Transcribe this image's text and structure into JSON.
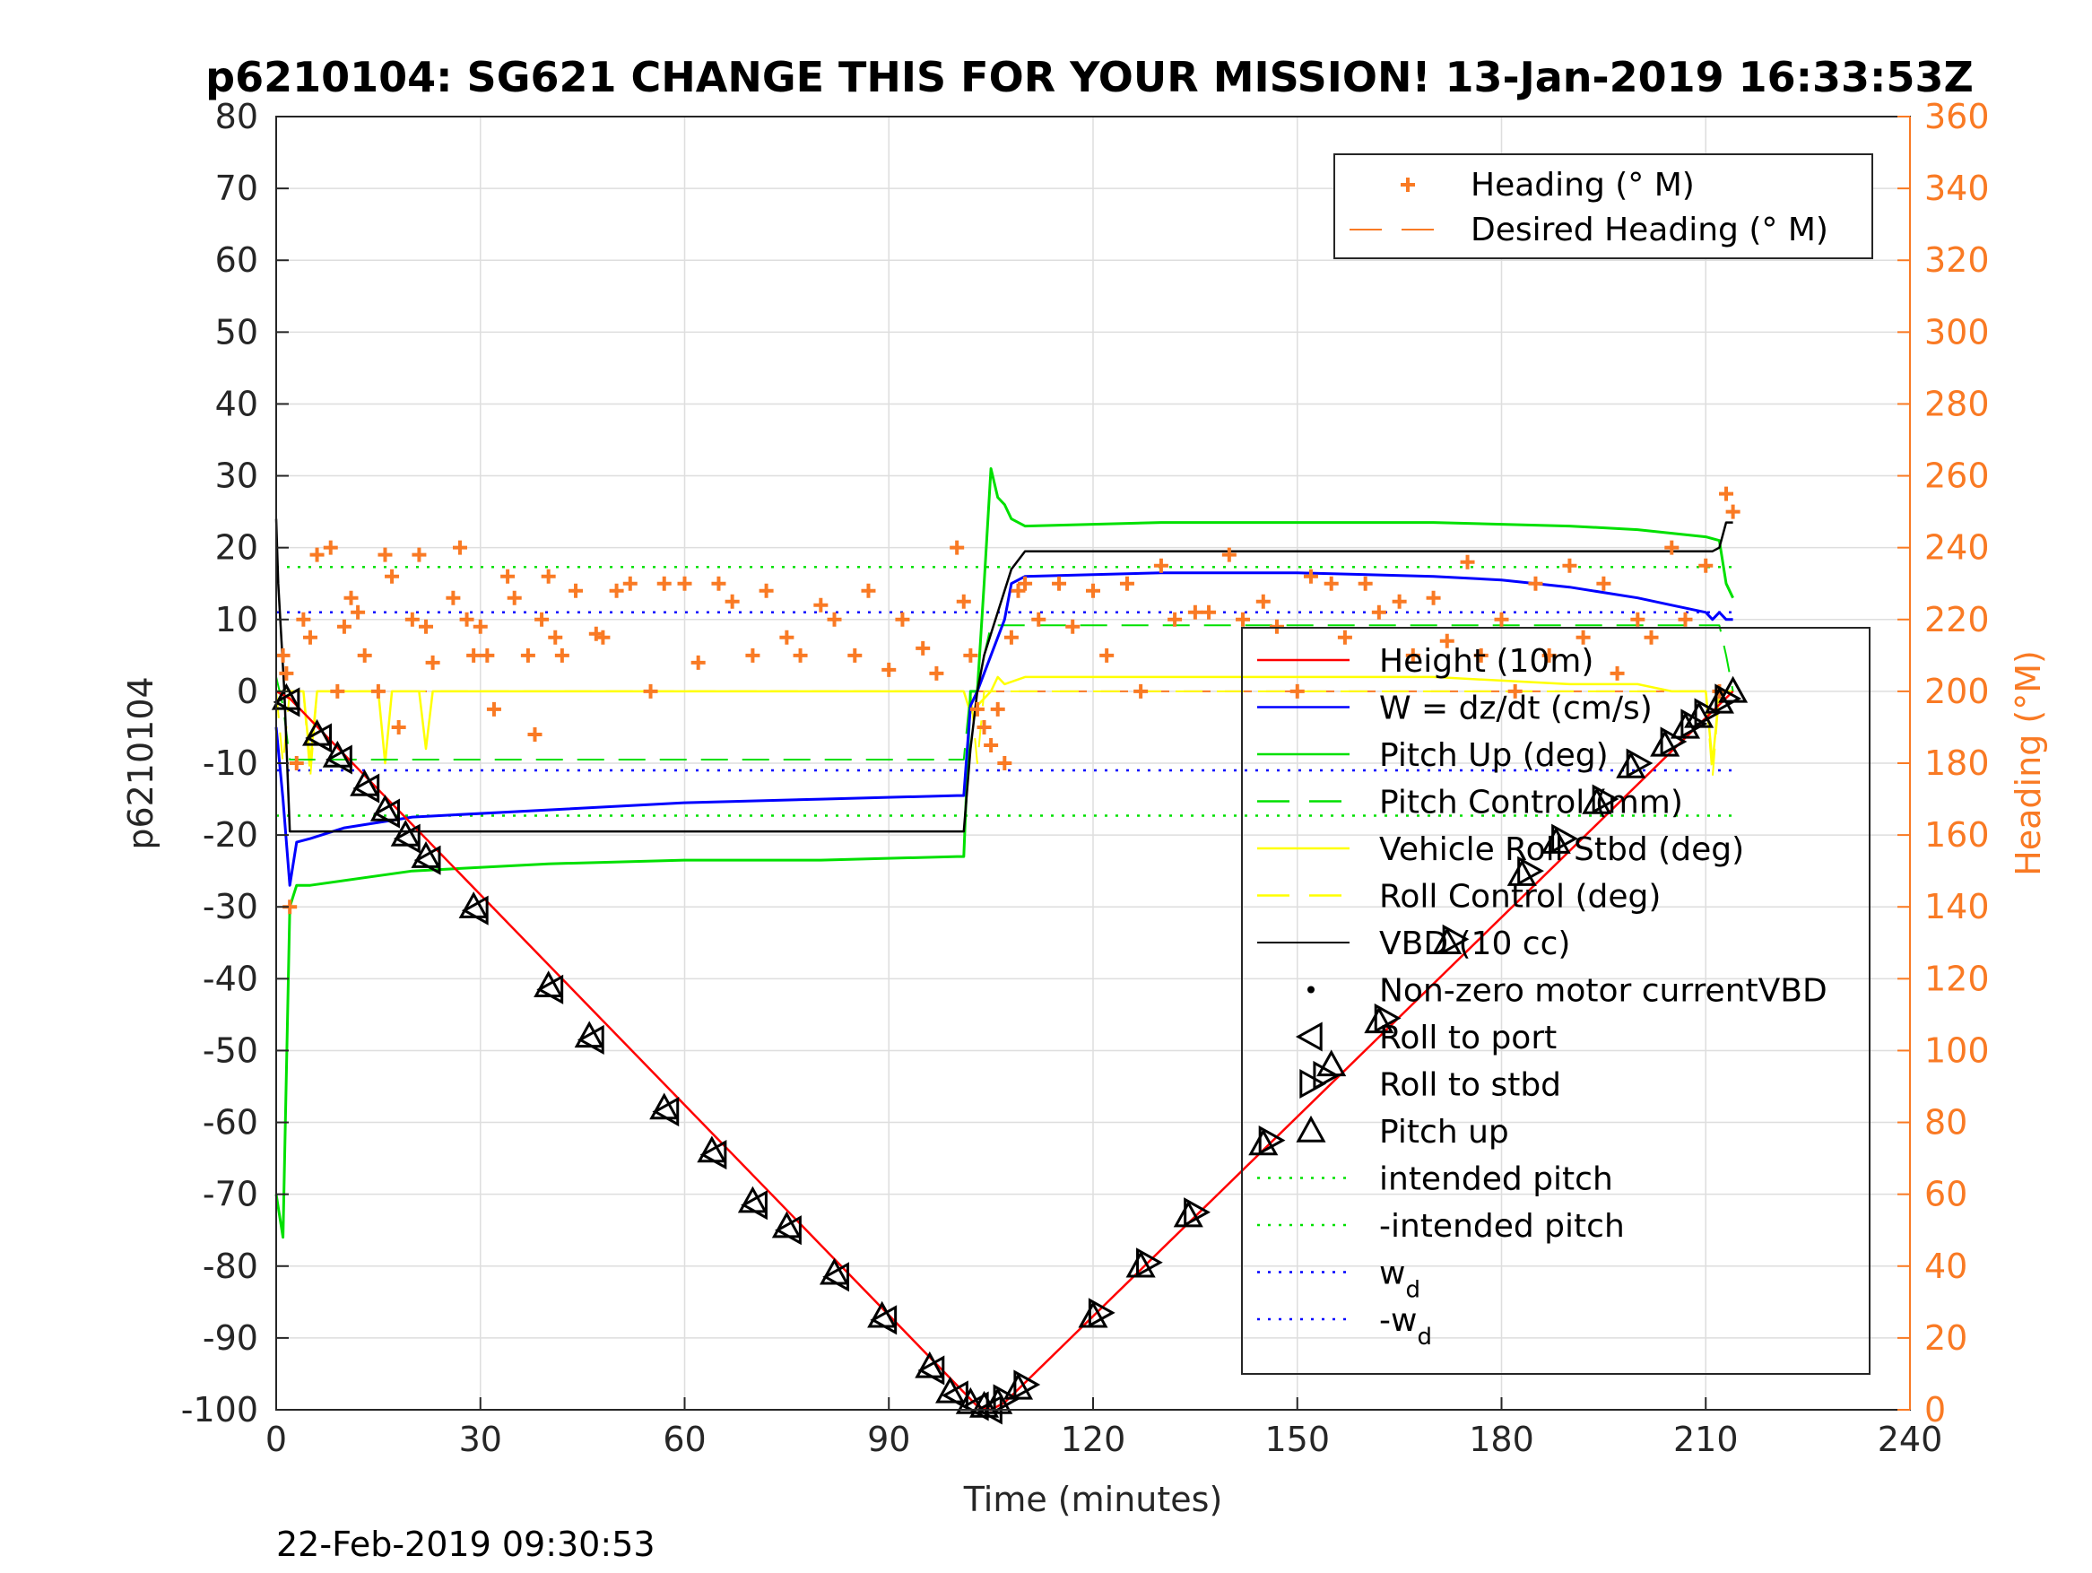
{
  "chart_data": {
    "type": "line",
    "title": "p6210104: SG621 CHANGE THIS FOR YOUR MISSION! 13-Jan-2019 16:33:53Z",
    "footer": "22-Feb-2019 09:30:53",
    "xlabel": "Time (minutes)",
    "ylabel": "p6210104",
    "y2label": "Heading (°M)",
    "xlim": [
      0,
      240
    ],
    "ylim": [
      -100,
      80
    ],
    "y2lim": [
      0,
      360
    ],
    "xticks": [
      "0",
      "30",
      "60",
      "90",
      "120",
      "150",
      "180",
      "210",
      "240"
    ],
    "yticks": [
      "-100",
      "-90",
      "-80",
      "-70",
      "-60",
      "-50",
      "-40",
      "-30",
      "-20",
      "-10",
      "0",
      "10",
      "20",
      "30",
      "40",
      "50",
      "60",
      "70",
      "80"
    ],
    "y2ticks": [
      "0",
      "20",
      "40",
      "60",
      "80",
      "100",
      "120",
      "140",
      "160",
      "180",
      "200",
      "220",
      "240",
      "260",
      "280",
      "300",
      "320",
      "340",
      "360"
    ],
    "grid": true,
    "colors": {
      "height": "#ff0000",
      "w": "#0000ff",
      "pitch": "#00e000",
      "roll": "#ffff00",
      "vbd": "#000000",
      "heading": "#f97a24"
    },
    "legend_top": [
      "Heading (° M)",
      "Desired Heading (° M)"
    ],
    "legend_main": [
      {
        "label": "Height (10m)",
        "sub": ""
      },
      {
        "label": "W = dz/dt (cm/s)",
        "sub": ""
      },
      {
        "label": "Pitch Up (deg)",
        "sub": ""
      },
      {
        "label": "Pitch Control (mm)",
        "sub": ""
      },
      {
        "label": "Vehicle Roll Stbd (deg)",
        "sub": ""
      },
      {
        "label": "Roll Control (deg)",
        "sub": ""
      },
      {
        "label": "VBD (10 cc)",
        "sub": ""
      },
      {
        "label": "Non-zero motor currentVBD",
        "sub": ""
      },
      {
        "label": "Roll to port",
        "sub": ""
      },
      {
        "label": "Roll to stbd",
        "sub": ""
      },
      {
        "label": "Pitch up",
        "sub": ""
      },
      {
        "label": "intended pitch",
        "sub": ""
      },
      {
        "label": "-intended pitch",
        "sub": ""
      },
      {
        "label": "w",
        "sub": "d"
      },
      {
        "label": "-w",
        "sub": "d"
      }
    ],
    "series": {
      "height": {
        "x": [
          0,
          2,
          103,
          105,
          107,
          214
        ],
        "y": [
          0,
          -1,
          -99.5,
          -100,
          -99,
          0
        ]
      },
      "vbd": {
        "x": [
          0,
          0.3,
          1.2,
          2,
          101,
          102,
          103,
          104,
          105,
          108,
          110,
          211,
          212,
          213,
          214
        ],
        "y": [
          24,
          15,
          0,
          -19.5,
          -19.5,
          -8,
          0,
          5,
          8,
          17,
          19.5,
          19.5,
          20,
          23.5,
          23.5
        ]
      },
      "w": {
        "x": [
          0,
          1,
          2,
          3,
          5,
          10,
          20,
          40,
          60,
          80,
          100,
          101,
          102,
          103,
          105,
          107,
          108,
          110,
          130,
          150,
          170,
          180,
          190,
          200,
          205,
          210,
          211,
          212,
          213,
          214
        ],
        "y": [
          -5,
          -15,
          -27,
          -21,
          -20.5,
          -19,
          -17.5,
          -16.5,
          -15.5,
          -15,
          -14.5,
          -14.5,
          -2,
          0,
          5,
          10,
          15,
          16,
          16.5,
          16.5,
          16,
          15.5,
          14.5,
          13,
          12,
          11,
          10,
          11,
          10,
          10
        ]
      },
      "pitch": {
        "x": [
          0,
          1,
          2,
          3,
          5,
          20,
          40,
          60,
          80,
          100,
          101,
          102,
          103,
          104,
          105,
          106,
          107,
          108,
          110,
          130,
          150,
          170,
          190,
          200,
          205,
          210,
          212,
          213,
          214
        ],
        "y": [
          -70,
          -76,
          -30,
          -27,
          -27,
          -25,
          -24,
          -23.5,
          -23.5,
          -23,
          -23,
          0,
          0,
          15,
          31,
          27,
          26,
          24,
          23,
          23.5,
          23.5,
          23.5,
          23,
          22.5,
          22,
          21.5,
          21,
          15,
          13
        ]
      },
      "pitch_control": {
        "x": [
          0,
          1,
          2,
          30,
          101,
          102,
          103,
          104,
          105,
          110,
          212,
          213,
          214
        ],
        "y": [
          2,
          -2,
          -9.5,
          -9.5,
          -9.5,
          0,
          0,
          5,
          9.2,
          9.2,
          9.2,
          5,
          0
        ]
      },
      "roll": {
        "x": [
          0,
          4,
          5,
          6,
          7,
          10,
          15,
          16,
          17,
          20,
          21,
          22,
          23,
          30,
          40,
          50,
          60,
          70,
          80,
          90,
          100,
          101,
          102,
          105,
          106,
          107,
          110,
          130,
          150,
          170,
          190,
          200,
          205,
          210,
          211,
          212,
          213,
          214
        ],
        "y": [
          0,
          0,
          -10,
          0,
          0,
          0,
          0,
          -10,
          0,
          0,
          0,
          -8,
          0,
          0,
          0,
          0,
          0,
          0,
          0,
          0,
          0,
          0,
          -3,
          0,
          2,
          1,
          2,
          2,
          2,
          2,
          1,
          1,
          0,
          0,
          -10,
          0,
          0,
          0
        ]
      },
      "roll_control": {
        "x": [
          0,
          1,
          2,
          4,
          5,
          6,
          7,
          100,
          101,
          102,
          103,
          104,
          105,
          106,
          210,
          211,
          212,
          213,
          214
        ],
        "y": [
          0,
          -10,
          0,
          0,
          -12,
          0,
          0,
          0,
          0,
          0,
          -10,
          0,
          0,
          0,
          0,
          -12,
          0,
          0,
          0
        ]
      },
      "heading": {
        "x": [
          1,
          1.5,
          2,
          3,
          4,
          5,
          6,
          8,
          9,
          10,
          11,
          12,
          13,
          15,
          16,
          17,
          18,
          20,
          21,
          22,
          23,
          26,
          27,
          28,
          29,
          30,
          31,
          32,
          34,
          35,
          37,
          38,
          39,
          40,
          41,
          42,
          44,
          47,
          48,
          50,
          52,
          55,
          57,
          60,
          62,
          65,
          67,
          70,
          72,
          75,
          77,
          80,
          82,
          85,
          87,
          90,
          92,
          95,
          97,
          100,
          101,
          102,
          103,
          104,
          105,
          106,
          107,
          108,
          109,
          110,
          112,
          115,
          117,
          120,
          122,
          125,
          127,
          130,
          132,
          135,
          137,
          140,
          142,
          145,
          147,
          150,
          152,
          155,
          157,
          160,
          162,
          165,
          167,
          170,
          172,
          175,
          177,
          180,
          182,
          185,
          187,
          190,
          192,
          195,
          197,
          200,
          202,
          205,
          207,
          210,
          212,
          213,
          214
        ],
        "y": [
          210,
          205,
          140,
          180,
          220,
          215,
          238,
          240,
          200,
          218,
          226,
          222,
          210,
          200,
          238,
          232,
          190,
          220,
          238,
          218,
          208,
          226,
          240,
          220,
          210,
          218,
          210,
          195,
          232,
          226,
          210,
          188,
          220,
          232,
          215,
          210,
          228,
          216,
          215,
          228,
          230,
          200,
          230,
          230,
          208,
          230,
          225,
          210,
          228,
          215,
          210,
          224,
          220,
          210,
          228,
          206,
          220,
          212,
          205,
          240,
          225,
          210,
          195,
          190,
          185,
          195,
          180,
          215,
          228,
          230,
          220,
          230,
          218,
          228,
          210,
          230,
          200,
          235,
          220,
          222,
          222,
          238,
          220,
          225,
          218,
          200,
          232,
          230,
          215,
          230,
          222,
          225,
          210,
          226,
          214,
          236,
          210,
          220,
          200,
          230,
          210,
          235,
          215,
          230,
          205,
          220,
          215,
          240,
          220,
          235,
          200,
          255,
          250
        ]
      },
      "desired_heading": {
        "x": [
          0,
          214
        ],
        "y": [
          200,
          200
        ]
      }
    },
    "reference_lines": {
      "intended_pitch": 17.3,
      "neg_intended_pitch": -17.3,
      "w_d": 11,
      "neg_w_d": -11
    },
    "markers": {
      "pitch_up": {
        "x": [
          1.5,
          6,
          9,
          13,
          16,
          19,
          22,
          29,
          40,
          46,
          57,
          64,
          70,
          75,
          82,
          89,
          96,
          99,
          102,
          104,
          106,
          109,
          120,
          127,
          134,
          145,
          155,
          162,
          172,
          183,
          188,
          194,
          199,
          204,
          207,
          209,
          212,
          214
        ],
        "y": [
          -1,
          -6,
          -9,
          -13,
          -16.5,
          -20,
          -23,
          -30,
          -41,
          -48,
          -58,
          -64,
          -71,
          -74.5,
          -81,
          -87,
          -94,
          -97.5,
          -99,
          -99.5,
          -99,
          -97,
          -87,
          -80,
          -73,
          -63,
          -52,
          -46,
          -35,
          -25.5,
          -21,
          -15.5,
          -10.5,
          -7.5,
          -5,
          -3.5,
          -1.5,
          0
        ]
      },
      "roll_to_port": {
        "x": [
          1.8,
          6.5,
          9.5,
          13.5,
          16.5,
          19.5,
          22.5,
          29.5,
          40.5,
          46.5,
          57.5,
          64.5,
          70.5,
          75.5,
          82.5,
          89.5,
          96.5,
          100,
          103,
          105
        ],
        "y": [
          -1.5,
          -6.5,
          -9.5,
          -13.5,
          -17,
          -20.5,
          -23.5,
          -30.5,
          -41.5,
          -48.5,
          -58.5,
          -64.5,
          -71.5,
          -75,
          -81.5,
          -87.5,
          -94.5,
          -98,
          -99.5,
          -100
        ]
      },
      "roll_to_stbd": {
        "x": [
          107,
          110,
          121,
          128,
          135,
          146,
          154,
          163,
          173,
          184,
          189,
          195,
          200,
          205,
          208,
          210,
          213
        ],
        "y": [
          -98.5,
          -96.5,
          -86.5,
          -79.5,
          -72.5,
          -62.5,
          -53.5,
          -45.5,
          -34.5,
          -25,
          -20.5,
          -15,
          -10,
          -7,
          -4.5,
          -3,
          -1
        ]
      }
    }
  }
}
